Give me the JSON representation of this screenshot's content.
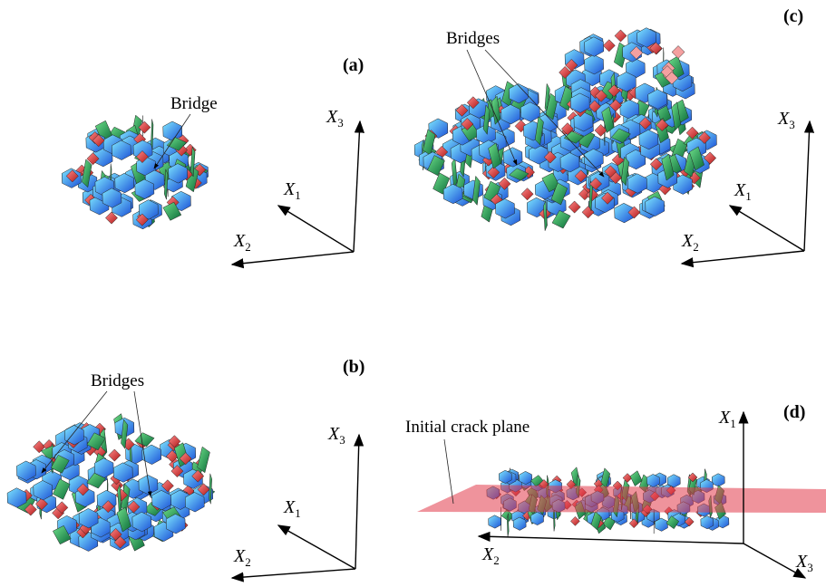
{
  "panels": [
    {
      "label": "(a)",
      "callout": "Bridge",
      "axes": {
        "x1": {
          "letter": "X",
          "index": "1"
        },
        "x2": {
          "letter": "X",
          "index": "2"
        },
        "x3": {
          "letter": "X",
          "index": "3"
        }
      }
    },
    {
      "label": "(b)",
      "callout": "Bridges",
      "axes": {
        "x1": {
          "letter": "X",
          "index": "1"
        },
        "x2": {
          "letter": "X",
          "index": "2"
        },
        "x3": {
          "letter": "X",
          "index": "3"
        }
      }
    },
    {
      "label": "(c)",
      "callout": "Bridges",
      "axes": {
        "x1": {
          "letter": "X",
          "index": "1"
        },
        "x2": {
          "letter": "X",
          "index": "2"
        },
        "x3": {
          "letter": "X",
          "index": "3"
        }
      }
    },
    {
      "label": "(d)",
      "callout": "Initial crack plane",
      "axes": {
        "x1": {
          "letter": "X",
          "index": "1"
        },
        "x2": {
          "letter": "X",
          "index": "2"
        },
        "x3": {
          "letter": "X",
          "index": "3"
        }
      }
    }
  ]
}
